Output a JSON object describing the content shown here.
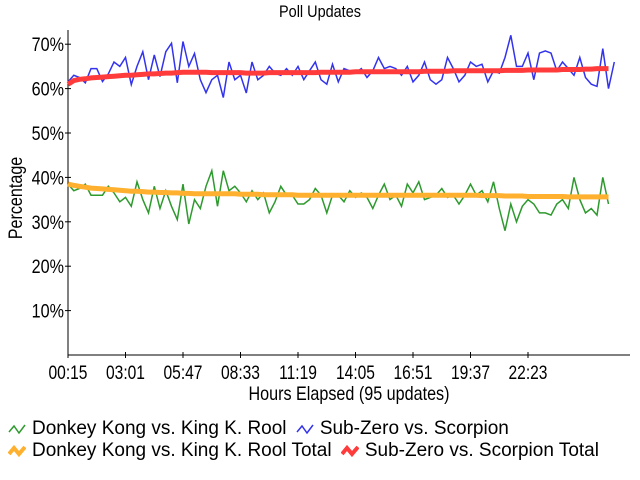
{
  "chart_data": {
    "type": "line",
    "title": "Poll Updates",
    "xlabel": "Hours Elapsed (95 updates)",
    "ylabel": "Percentage",
    "ylim": [
      0,
      72
    ],
    "yticks": [
      "10%",
      "20%",
      "30%",
      "40%",
      "50%",
      "60%",
      "70%"
    ],
    "xticks": [
      "00:15",
      "03:01",
      "05:47",
      "08:33",
      "11:19",
      "14:05",
      "16:51",
      "19:37",
      "22:23"
    ],
    "grid": false,
    "legend_position": "bottom",
    "series": [
      {
        "name": "Donkey Kong vs. King K. Rool",
        "color": "#2e9a2e",
        "width": 1.5,
        "values": [
          38.5,
          37,
          37.5,
          38.5,
          36,
          36,
          36,
          38,
          36.5,
          34.5,
          35.5,
          33.5,
          39,
          35,
          32,
          38,
          33,
          37,
          33.5,
          30.5,
          38.5,
          29.5,
          35,
          33,
          38,
          41.5,
          33.5,
          41.5,
          37,
          38,
          36.5,
          34.5,
          37,
          35,
          36.5,
          32,
          34.5,
          38,
          36,
          36,
          34,
          34,
          35,
          37.5,
          36,
          32,
          36,
          36,
          34.5,
          37,
          35.5,
          36.5,
          35.5,
          33,
          36,
          38.5,
          35,
          36,
          33.5,
          38.5,
          36.5,
          39,
          35,
          35.5,
          36,
          37.5,
          35.5,
          36,
          34,
          36,
          38.5,
          36,
          37,
          34.5,
          39,
          33,
          28,
          34,
          30,
          33.5,
          35,
          34,
          32,
          32,
          31.5,
          34,
          35,
          33,
          40,
          35,
          32,
          33,
          31.5,
          40,
          34
        ]
      },
      {
        "name": "Sub-Zero vs. Scorpion",
        "color": "#3333ee",
        "width": 1.5,
        "values": [
          61.5,
          63,
          62.5,
          61.3,
          64.5,
          64.5,
          61.6,
          63.3,
          66,
          65,
          67,
          60.9,
          65,
          68.3,
          62,
          67.6,
          62.7,
          68.3,
          70.2,
          61.3,
          70.6,
          65,
          67.9,
          62,
          59.1,
          62,
          63,
          58,
          66,
          62,
          63,
          59,
          66,
          62,
          63,
          65,
          63.5,
          63,
          64.5,
          63,
          65,
          62,
          64,
          66,
          62,
          61,
          65.5,
          61.5,
          64.5,
          64,
          63.5,
          64.5,
          62.5,
          64,
          67,
          64.5,
          65,
          64.5,
          63,
          65,
          61.5,
          63,
          66,
          62,
          61,
          62,
          67,
          64.5,
          61.5,
          63,
          66,
          65,
          65.5,
          61.5,
          64,
          63.5,
          67,
          72,
          65,
          65,
          68,
          62,
          68,
          68.5,
          68,
          64,
          66,
          64.5,
          63,
          67,
          62.5,
          61,
          60.5,
          69,
          60,
          66
        ]
      },
      {
        "name": "Donkey Kong vs. King K. Rool Total",
        "color": "#ffb02e",
        "width": 5,
        "values": [
          38.5,
          38.2,
          38,
          37.8,
          37.6,
          37.5,
          37.4,
          37.3,
          37.2,
          37.1,
          37,
          36.9,
          36.9,
          36.8,
          36.7,
          36.7,
          36.6,
          36.6,
          36.5,
          36.5,
          36.4,
          36.4,
          36.3,
          36.3,
          36.3,
          36.3,
          36.3,
          36.3,
          36.3,
          36.3,
          36.2,
          36.2,
          36.2,
          36.2,
          36.1,
          36.1,
          36.1,
          36.1,
          36.1,
          36.1,
          36,
          36,
          36,
          36,
          36,
          36,
          36,
          36,
          36,
          36,
          36,
          36,
          36,
          36,
          36,
          36,
          36,
          36,
          36,
          36,
          36,
          36,
          36,
          36,
          36,
          36,
          36,
          36,
          36,
          36,
          36,
          36,
          35.9,
          35.9,
          35.9,
          35.9,
          35.8,
          35.8,
          35.8,
          35.8,
          35.7,
          35.7,
          35.7,
          35.7,
          35.7,
          35.7,
          35.7,
          35.6,
          35.6,
          35.6,
          35.6,
          35.6,
          35.6,
          35.6,
          35.6
        ]
      },
      {
        "name": "Sub-Zero vs. Scorpion Total",
        "color": "#ff3b3b",
        "width": 5,
        "values": [
          61,
          61.8,
          62.1,
          62.2,
          62.4,
          62.5,
          62.6,
          62.7,
          62.8,
          62.9,
          63,
          63,
          63.1,
          63.2,
          63.3,
          63.3,
          63.4,
          63.5,
          63.5,
          63.6,
          63.7,
          63.7,
          63.7,
          63.7,
          63.7,
          63.6,
          63.6,
          63.6,
          63.6,
          63.6,
          63.6,
          63.5,
          63.5,
          63.5,
          63.5,
          63.6,
          63.6,
          63.6,
          63.6,
          63.6,
          63.6,
          63.6,
          63.6,
          63.6,
          63.7,
          63.7,
          63.7,
          63.7,
          63.7,
          63.7,
          63.8,
          63.8,
          63.8,
          63.8,
          63.8,
          63.8,
          63.8,
          63.8,
          63.8,
          63.8,
          63.8,
          63.8,
          63.9,
          63.9,
          63.9,
          63.9,
          63.9,
          64,
          64,
          64,
          64,
          64,
          64,
          64,
          64,
          64,
          64.1,
          64.1,
          64.1,
          64.1,
          64.2,
          64.2,
          64.2,
          64.2,
          64.2,
          64.2,
          64.3,
          64.3,
          64.3,
          64.3,
          64.4,
          64.4,
          64.5,
          64.5,
          64.5
        ]
      }
    ]
  },
  "legend": {
    "rows": [
      [
        "Donkey Kong vs. King K. Rool",
        "Sub-Zero vs. Scorpion"
      ],
      [
        "Donkey Kong vs. King K. Rool Total",
        "Sub-Zero vs. Scorpion Total"
      ]
    ]
  }
}
